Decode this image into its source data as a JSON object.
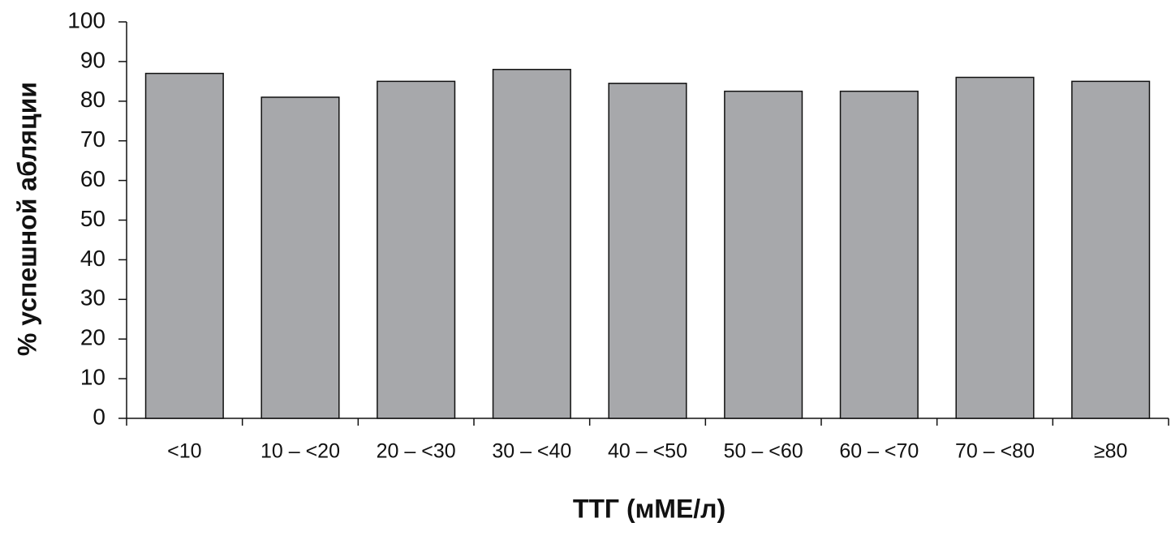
{
  "chart_data": {
    "type": "bar",
    "categories": [
      "<10",
      "10 – <20",
      "20 – <30",
      "30 – <40",
      "40 – <50",
      "50 – <60",
      "60 – <70",
      "70 – <80",
      "≥80"
    ],
    "values": [
      87,
      81,
      85,
      88,
      84.5,
      82.5,
      82.5,
      86,
      85
    ],
    "color": "#a7a8ab",
    "ylim": [
      0,
      100
    ],
    "yticks": [
      0,
      10,
      20,
      30,
      40,
      50,
      60,
      70,
      80,
      90,
      100
    ],
    "y_label": "% успешной абляции",
    "x_label": "ТТГ (мМЕ/л)",
    "grid": false
  }
}
